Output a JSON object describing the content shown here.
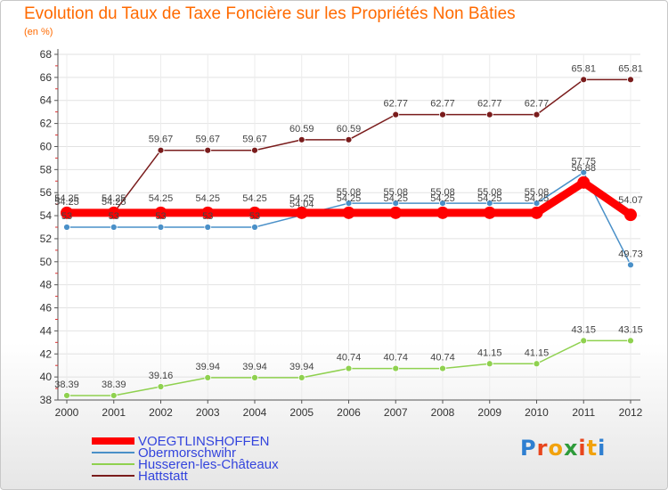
{
  "chart_data": {
    "type": "line",
    "title": "Evolution du Taux de Taxe Foncière sur les Propriétés Non Bâties",
    "subtitle": "(en %)",
    "x": [
      "2000",
      "2001",
      "2002",
      "2003",
      "2004",
      "2005",
      "2006",
      "2007",
      "2008",
      "2009",
      "2010",
      "2011",
      "2012"
    ],
    "ylim": [
      38,
      68
    ],
    "yticks": [
      38,
      40,
      42,
      44,
      46,
      48,
      50,
      52,
      54,
      56,
      58,
      60,
      62,
      64,
      66,
      68
    ],
    "grid": true,
    "legend_position": "bottom-left",
    "series": [
      {
        "name": "VOEGTLINSHOFFEN",
        "color": "#ff0000",
        "values": [
          54.25,
          54.25,
          54.25,
          54.25,
          54.25,
          54.25,
          54.25,
          54.25,
          54.25,
          54.25,
          54.25,
          56.88,
          54.07
        ],
        "labels": [
          "54.25",
          "54.25",
          "54.25",
          "54.25",
          "54.25",
          "54.25",
          "54.25",
          "54.25",
          "54.25",
          "54.25",
          "54.25",
          "56.88",
          "54.07"
        ]
      },
      {
        "name": "Obermorschwihr",
        "color": "#4a90c8",
        "values": [
          53,
          53,
          53,
          53,
          53,
          54.04,
          55.08,
          55.08,
          55.08,
          55.08,
          55.08,
          57.75,
          49.73
        ],
        "labels": [
          "53",
          "53",
          "53",
          "53",
          "53",
          "54.04",
          "55.08",
          "55.08",
          "55.08",
          "55.08",
          "55.08",
          "57.75",
          "49.73"
        ]
      },
      {
        "name": "Husseren-les-Châteaux",
        "color": "#8fd14f",
        "values": [
          38.39,
          38.39,
          39.16,
          39.94,
          39.94,
          39.94,
          40.74,
          40.74,
          40.74,
          41.15,
          41.15,
          43.15,
          43.15
        ],
        "labels": [
          "38.39",
          "38.39",
          "39.16",
          "39.94",
          "39.94",
          "39.94",
          "40.74",
          "40.74",
          "40.74",
          "41.15",
          "41.15",
          "43.15",
          "43.15"
        ]
      },
      {
        "name": "Hattstatt",
        "color": "#7a1c1c",
        "values": [
          54.25,
          54.25,
          59.67,
          59.67,
          59.67,
          60.59,
          60.59,
          62.77,
          62.77,
          62.77,
          62.77,
          65.81,
          65.81
        ],
        "labels": [
          "54.25",
          "54.25",
          "59.67",
          "59.67",
          "59.67",
          "60.59",
          "60.59",
          "62.77",
          "62.77",
          "62.77",
          "62.77",
          "65.81",
          "65.81"
        ]
      }
    ]
  },
  "logo": {
    "letters": [
      "P",
      "r",
      "o",
      "x",
      "i",
      "t",
      "i"
    ],
    "colors": [
      "#2e7fd1",
      "#e8461d",
      "#f2a20d",
      "#2e9b3a",
      "#e8461d",
      "#f2a20d",
      "#2e7fd1"
    ]
  }
}
